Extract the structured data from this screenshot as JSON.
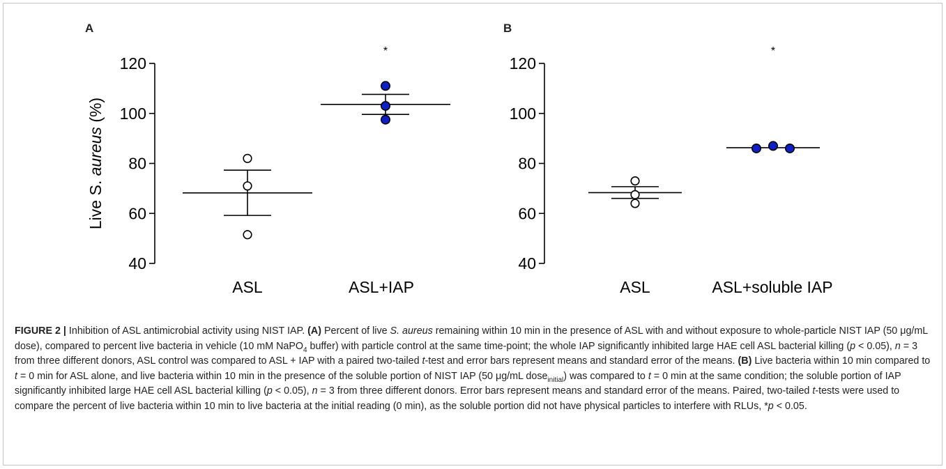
{
  "colors": {
    "filled_marker": "#0c1fc8",
    "open_marker_fill": "#ffffff",
    "axis": "#000000",
    "text": "#222222"
  },
  "chart_data": [
    {
      "type": "scatter",
      "panel_label": "A",
      "title": "",
      "ylabel": "Live S. aureus (%)",
      "ylabel_plain": "Live S. ",
      "ylabel_italic": "aureus",
      "ylabel_unit": " (%)",
      "ylim": [
        40,
        120
      ],
      "yticks": [
        40,
        60,
        80,
        100,
        120
      ],
      "categories": [
        "ASL",
        "ASL+IAP"
      ],
      "series": [
        {
          "category": "ASL",
          "marker": "open",
          "points": [
            82,
            71,
            51.5
          ],
          "mean": 68.2,
          "sem_upper": 77.3,
          "sem_lower": 59.2
        },
        {
          "category": "ASL+IAP",
          "marker": "filled",
          "points": [
            111,
            103,
            97.5
          ],
          "mean": 103.6,
          "sem_upper": 107.6,
          "sem_lower": 99.6
        }
      ],
      "annotations": [
        {
          "category": "ASL+IAP",
          "text": "*",
          "y": 127
        }
      ]
    },
    {
      "type": "scatter",
      "panel_label": "B",
      "title": "",
      "ylabel": "",
      "ylim": [
        40,
        120
      ],
      "yticks": [
        40,
        60,
        80,
        100,
        120
      ],
      "categories": [
        "ASL",
        "ASL+soluble IAP"
      ],
      "series": [
        {
          "category": "ASL",
          "marker": "open",
          "points": [
            73,
            67.5,
            64
          ],
          "mean": 68.3,
          "sem_upper": 70.7,
          "sem_lower": 66.0
        },
        {
          "category": "ASL+soluble IAP",
          "marker": "filled",
          "points": [
            86,
            87,
            86
          ],
          "mean": 86.3,
          "sem_upper": 86.3,
          "sem_lower": 86.3
        }
      ],
      "annotations": [
        {
          "category": "ASL+soluble IAP",
          "text": "*",
          "y": 127
        }
      ]
    }
  ],
  "caption": {
    "p1": "FIGURE 2 |",
    "p2": " Inhibition of ASL antimicrobial activity using NIST IAP. ",
    "p3": "(A)",
    "p4": " Percent of live ",
    "p5": "S. aureus",
    "p6": " remaining within 10 min in the presence of ASL with and without exposure to whole-particle NIST IAP (50 μg/mL dose), compared to percent live bacteria in vehicle (10 mM NaPO",
    "p7": "4",
    "p8": " buffer) with particle control at the same time-point; the whole IAP significantly inhibited large HAE cell ASL bacterial killing (",
    "p9": "p",
    "p10": " < 0.05), ",
    "p11": "n",
    "p12": " = 3 from three different donors, ASL control was compared to ASL + IAP with a paired two-tailed ",
    "p13": "t",
    "p14": "-test and error bars represent means and standard error of the means. ",
    "p15": "(B)",
    "p16": " Live bacteria within 10 min compared to ",
    "p17": "t",
    "p18": " = 0 min for ASL alone, and live bacteria within 10 min in the presence of the soluble portion of NIST IAP (50 μg/mL dose",
    "p19": "initial",
    "p20": ") was compared to ",
    "p21": "t",
    "p22": " = 0 min at the same condition; the soluble portion of IAP significantly inhibited large HAE cell ASL bacterial killing (",
    "p23": "p",
    "p24": " < 0.05), ",
    "p25": "n",
    "p26": " = 3 from three different donors. Error bars represent means and standard error of the means. Paired, two-tailed ",
    "p27": "t",
    "p28": "-tests were used to compare the percent of live bacteria within 10 min to live bacteria at the initial reading (0 min), as the soluble portion did not have physical particles to interfere with RLUs, *",
    "p29": "p",
    "p30": " < 0.05."
  }
}
